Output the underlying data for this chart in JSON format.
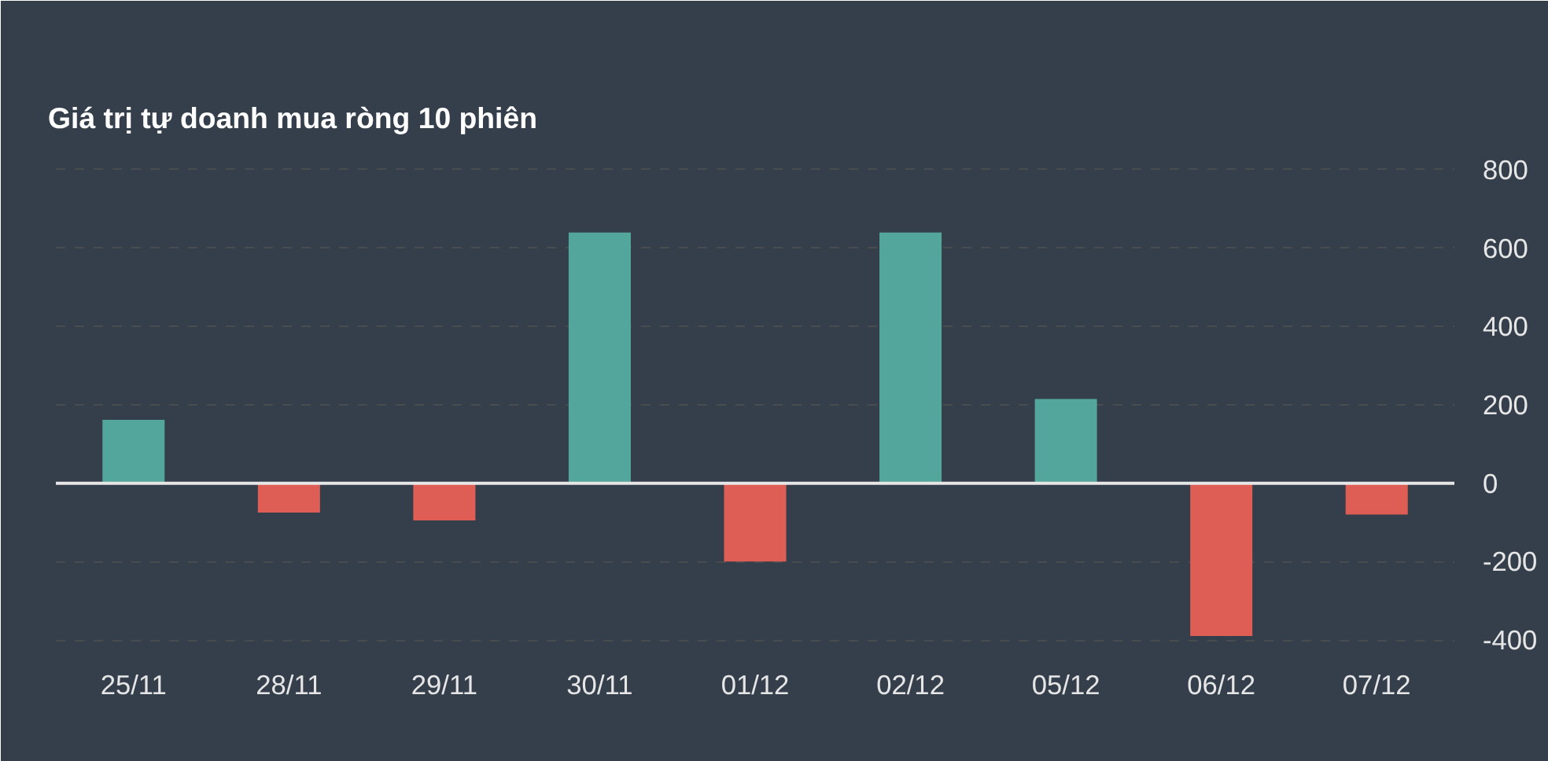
{
  "chart_data": {
    "type": "bar",
    "title": "Giá trị tự doanh mua ròng 10 phiên",
    "categories": [
      "25/11",
      "28/11",
      "29/11",
      "30/11",
      "01/12",
      "02/12",
      "05/12",
      "06/12",
      "07/12"
    ],
    "values": [
      162,
      -75,
      -95,
      640,
      -200,
      640,
      215,
      -390,
      -80
    ],
    "colors": [
      "#52a69c",
      "#de5d55",
      "#de5d55",
      "#52a69c",
      "#de5d55",
      "#52a69c",
      "#52a69c",
      "#de5d55",
      "#de5d55"
    ],
    "ylim": [
      -410,
      830
    ],
    "yticks": [
      -400,
      -200,
      0,
      200,
      400,
      600,
      800
    ],
    "grid": "y",
    "ref_lines": [
      {
        "axis": "y",
        "value": 0,
        "color": "#e6e6e6"
      }
    ]
  }
}
